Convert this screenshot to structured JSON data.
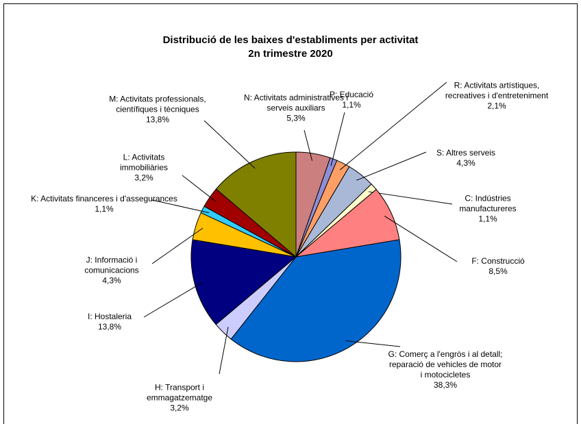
{
  "chart_data": {
    "type": "pie",
    "title": "Distribució de les baixes d'establiments per activitat",
    "subtitle": "2n trimestre 2020",
    "categories": [
      "N: Activitats administratives i serveis auxiliars",
      "P: Educació",
      "R: Activitats artístiques, recreatives i d'entreteniment",
      "S: Altres serveis",
      "C: Indústries manufactureres",
      "F: Construcció",
      "G: Comerç a l'engròs i al detall; reparació de vehicles de motor i motocicletes",
      "H: Transport i emmagatzematge",
      "I: Hostaleria",
      "J: Informació i comunicacions",
      "K: Activitats financeres i d'assegurances",
      "L: Activitats immobiliàries",
      "M: Activitats professionals, científiques i tècniques"
    ],
    "values": [
      5.3,
      1.1,
      2.1,
      4.3,
      1.1,
      8.5,
      38.3,
      3.2,
      13.8,
      4.3,
      1.1,
      3.2,
      13.8
    ],
    "value_labels": [
      "5,3%",
      "1,1%",
      "2,1%",
      "4,3%",
      "1,1%",
      "8,5%",
      "38,3%",
      "3,2%",
      "13,8%",
      "4,3%",
      "1,1%",
      "3,2%",
      "13,8%"
    ],
    "colors": [
      "#cc7f7f",
      "#8f8fd6",
      "#ff9f66",
      "#aab8d8",
      "#ffffcc",
      "#ff8080",
      "#0066cc",
      "#ccccff",
      "#000080",
      "#ffc000",
      "#33ccff",
      "#a00000",
      "#808000"
    ]
  }
}
